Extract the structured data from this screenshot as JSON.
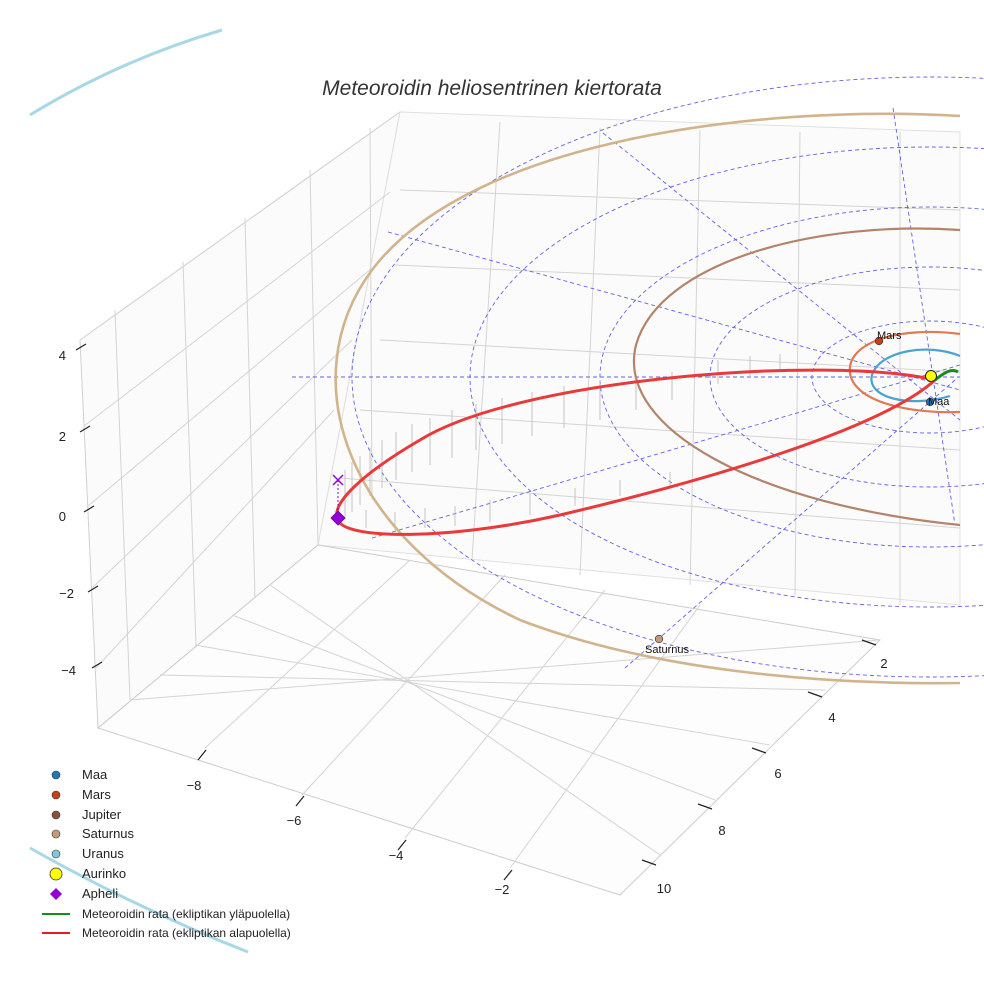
{
  "chart_data": {
    "type": "scatter3d",
    "title": "Meteoroidin heliosentrinen kiertorata",
    "axes": {
      "x": {
        "ticks": [
          "−8",
          "−6",
          "−4",
          "−2"
        ],
        "values": [
          -8,
          -6,
          -4,
          -2
        ]
      },
      "y": {
        "ticks": [
          "2",
          "4",
          "6",
          "8",
          "10"
        ],
        "values": [
          2,
          4,
          6,
          8,
          10
        ]
      },
      "z": {
        "ticks": [
          "4",
          "2",
          "0",
          "−2",
          "−4"
        ],
        "values": [
          4,
          2,
          0,
          -2,
          -4
        ]
      }
    },
    "planets": [
      {
        "name": "Maa",
        "label": "Maa",
        "color": "#1f77b4",
        "orbit_color": "#4aa3cf"
      },
      {
        "name": "Mars",
        "label": "Mars",
        "color": "#c8401a",
        "orbit_color": "#e07a50"
      },
      {
        "name": "Jupiter",
        "label": "",
        "color": "#8c4f3a",
        "orbit_color": "#b08a72"
      },
      {
        "name": "Saturnus",
        "label": "Saturnus",
        "color": "#c49a7a",
        "orbit_color": "#d8b892"
      },
      {
        "name": "Uranus",
        "label": "",
        "color": "#7fc8dc",
        "orbit_color": "#a8d8e6"
      }
    ],
    "sun": {
      "name": "Aurinko",
      "color": "#ffff00"
    },
    "aphelion": {
      "name": "Apheli",
      "color": "#9400d3"
    },
    "meteoroid": {
      "above": {
        "name": "Meteoroidin rata (ekliptikan yläpuolella)",
        "color": "#1a8a1a"
      },
      "below": {
        "name": "Meteoroidin rata (ekliptikan alapuolella)",
        "color": "#e02020"
      }
    }
  },
  "legend": [
    {
      "label": "Maa",
      "marker": "dot",
      "color": "#1f77b4"
    },
    {
      "label": "Mars",
      "marker": "dot",
      "color": "#c8401a"
    },
    {
      "label": "Jupiter",
      "marker": "dot",
      "color": "#8c4f3a"
    },
    {
      "label": "Saturnus",
      "marker": "dot",
      "color": "#c49a7a"
    },
    {
      "label": "Uranus",
      "marker": "dot",
      "color": "#7fc8dc"
    },
    {
      "label": "Aurinko",
      "marker": "sun",
      "color": "#ffff00"
    },
    {
      "label": "Apheli",
      "marker": "diamond",
      "color": "#9400d3"
    },
    {
      "label": "Meteoroidin rata (ekliptikan yläpuolella)",
      "marker": "line",
      "color": "#1a8a1a"
    },
    {
      "label": "Meteoroidin rata (ekliptikan alapuolella)",
      "marker": "line",
      "color": "#e02020"
    }
  ]
}
